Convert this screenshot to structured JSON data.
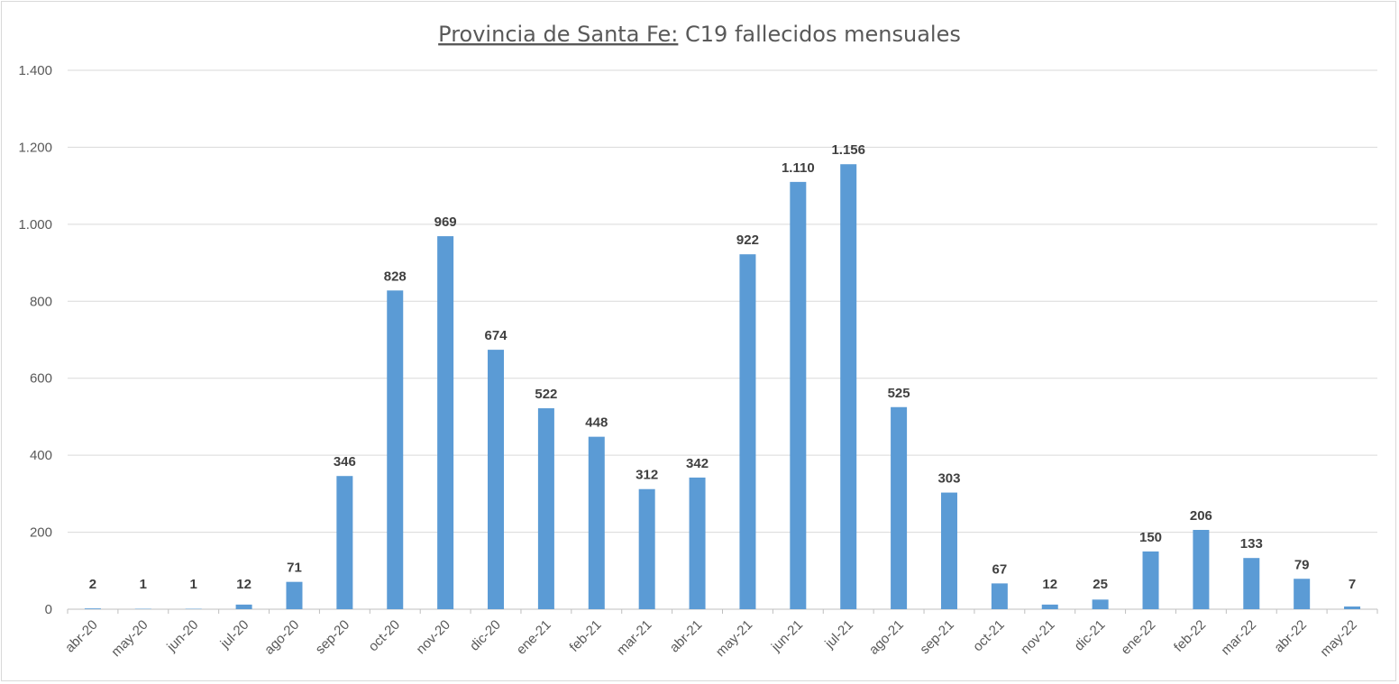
{
  "chart_data": {
    "type": "bar",
    "title_prefix": "Provincia de Santa Fe:",
    "title_suffix": " C19 fallecidos mensuales",
    "xlabel": "",
    "ylabel": "",
    "ylim": [
      0,
      1400
    ],
    "yticks": [
      0,
      200,
      400,
      600,
      800,
      1000,
      1200,
      1400
    ],
    "ytick_labels": [
      "0",
      "200",
      "400",
      "600",
      "800",
      "1.000",
      "1.200",
      "1.400"
    ],
    "grid": true,
    "bar_color": "#5B9BD5",
    "categories": [
      "abr-20",
      "may-20",
      "jun-20",
      "jul-20",
      "ago-20",
      "sep-20",
      "oct-20",
      "nov-20",
      "dic-20",
      "ene-21",
      "feb-21",
      "mar-21",
      "abr-21",
      "may-21",
      "jun-21",
      "jul-21",
      "ago-21",
      "sep-21",
      "oct-21",
      "nov-21",
      "dic-21",
      "ene-22",
      "feb-22",
      "mar-22",
      "abr-22",
      "may-22"
    ],
    "values": [
      2,
      1,
      1,
      12,
      71,
      346,
      828,
      969,
      674,
      522,
      448,
      312,
      342,
      922,
      1110,
      1156,
      525,
      303,
      67,
      12,
      25,
      150,
      206,
      133,
      79,
      7
    ],
    "value_labels": [
      "2",
      "1",
      "1",
      "12",
      "71",
      "346",
      "828",
      "969",
      "674",
      "522",
      "448",
      "312",
      "342",
      "922",
      "1.110",
      "1.156",
      "525",
      "303",
      "67",
      "12",
      "25",
      "150",
      "206",
      "133",
      "79",
      "7"
    ]
  }
}
